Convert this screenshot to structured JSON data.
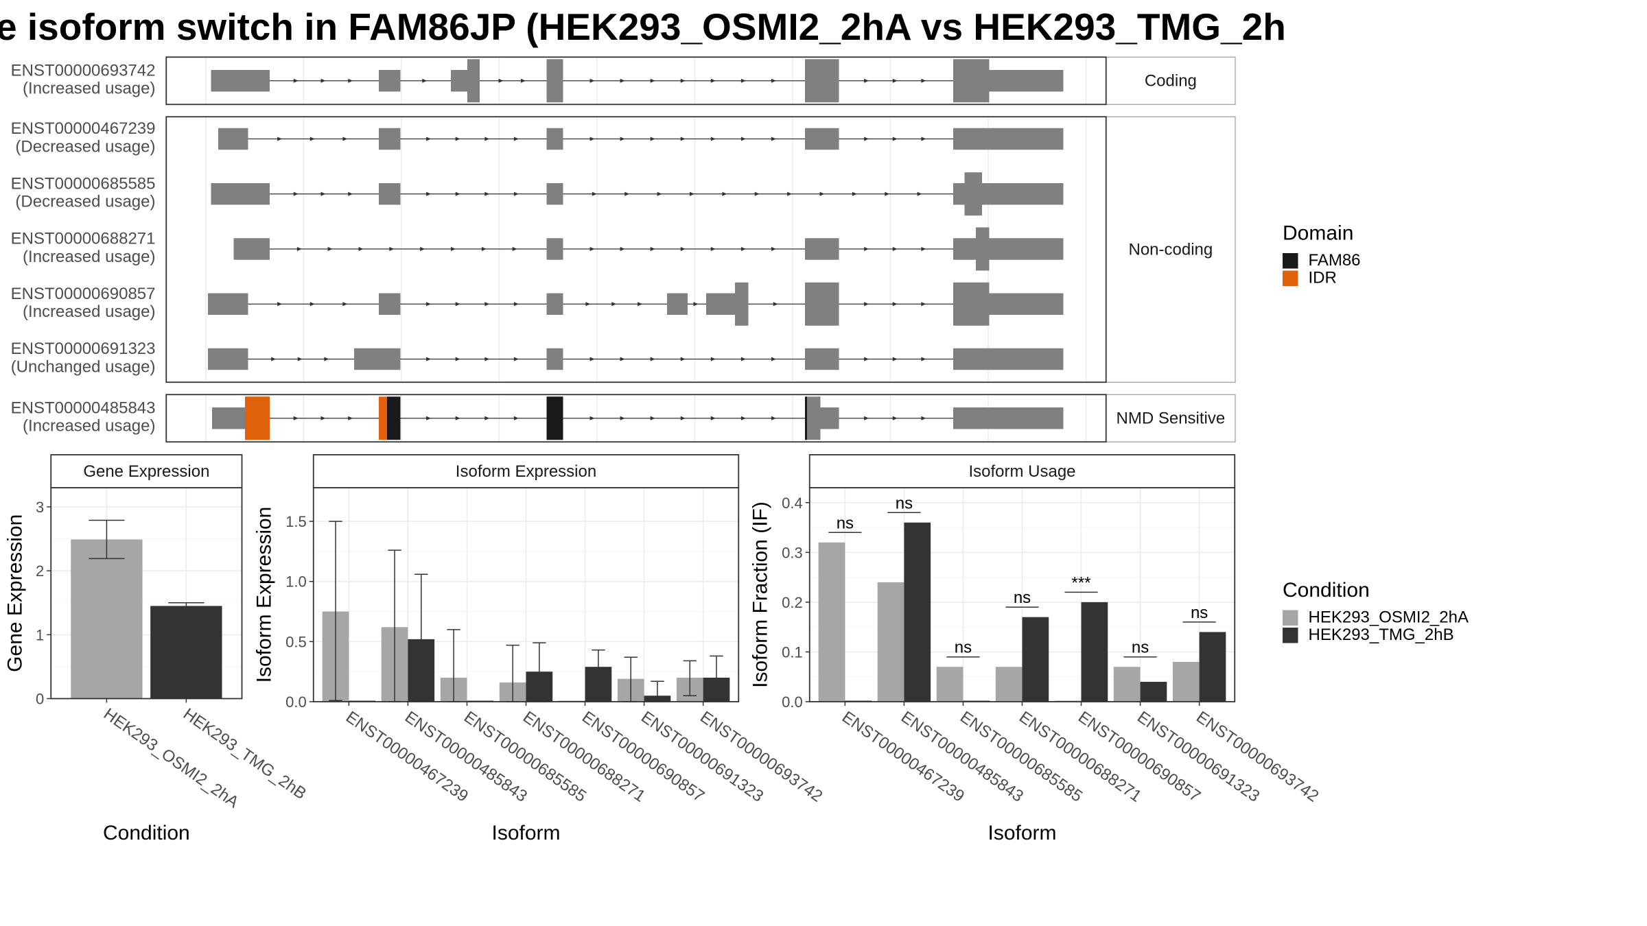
{
  "title": "e isoform switch in FAM86JP (HEK293_OSMI2_2hA vs HEK293_TMG_2h",
  "colors": {
    "exon": "#808080",
    "fam86": "#1a1a1a",
    "idr": "#e06109",
    "cond_a": "#a6a6a6",
    "cond_b": "#333333",
    "grid": "#ebebeb",
    "strip_border": "#999999"
  },
  "structure": {
    "groups": [
      {
        "label": "Coding",
        "rows": [
          0
        ]
      },
      {
        "label": "Non-coding",
        "rows": [
          1,
          2,
          3,
          4,
          5
        ]
      },
      {
        "label": "NMD Sensitive",
        "rows": [
          6
        ]
      }
    ],
    "transcripts": [
      {
        "id": "ENST00000693742",
        "usage": "(Increased usage)",
        "exons": [
          [
            205,
            262,
            "s"
          ],
          [
            368,
            389,
            "s"
          ],
          [
            438,
            454,
            "s"
          ],
          [
            454,
            466,
            "t"
          ],
          [
            531,
            547,
            "t"
          ],
          [
            782,
            815,
            "t"
          ],
          [
            926,
            961,
            "t"
          ],
          [
            961,
            1033,
            "m"
          ]
        ],
        "domains": []
      },
      {
        "id": "ENST00000467239",
        "usage": "(Decreased usage)",
        "exons": [
          [
            212,
            241,
            "s"
          ],
          [
            368,
            389,
            "s"
          ],
          [
            531,
            547,
            "s"
          ],
          [
            782,
            815,
            "s"
          ],
          [
            926,
            1033,
            "m"
          ]
        ],
        "domains": []
      },
      {
        "id": "ENST00000685585",
        "usage": "(Decreased usage)",
        "exons": [
          [
            205,
            262,
            "s"
          ],
          [
            368,
            389,
            "s"
          ],
          [
            531,
            547,
            "s"
          ],
          [
            926,
            937,
            "s"
          ],
          [
            937,
            954,
            "t"
          ],
          [
            954,
            1033,
            "s"
          ]
        ],
        "domains": []
      },
      {
        "id": "ENST00000688271",
        "usage": "(Increased usage)",
        "exons": [
          [
            227,
            262,
            "s"
          ],
          [
            531,
            547,
            "s"
          ],
          [
            782,
            815,
            "s"
          ],
          [
            926,
            948,
            "s"
          ],
          [
            948,
            961,
            "t"
          ],
          [
            961,
            1033,
            "s"
          ]
        ],
        "domains": []
      },
      {
        "id": "ENST00000690857",
        "usage": "(Increased usage)",
        "exons": [
          [
            202,
            241,
            "s"
          ],
          [
            368,
            389,
            "s"
          ],
          [
            531,
            547,
            "s"
          ],
          [
            648,
            668,
            "s"
          ],
          [
            686,
            714,
            "s"
          ],
          [
            714,
            727,
            "t"
          ],
          [
            782,
            815,
            "t"
          ],
          [
            926,
            961,
            "t"
          ],
          [
            961,
            1033,
            "s"
          ]
        ],
        "domains": []
      },
      {
        "id": "ENST00000691323",
        "usage": "(Unchanged usage)",
        "exons": [
          [
            202,
            241,
            "s"
          ],
          [
            344,
            389,
            "s"
          ],
          [
            531,
            547,
            "s"
          ],
          [
            782,
            815,
            "s"
          ],
          [
            926,
            1033,
            "s"
          ]
        ],
        "domains": []
      },
      {
        "id": "ENST00000485843",
        "usage": "(Increased usage)",
        "exons": [
          [
            206,
            238,
            "s"
          ],
          [
            238,
            262,
            "t"
          ],
          [
            368,
            389,
            "s"
          ],
          [
            531,
            547,
            "t"
          ],
          [
            782,
            797,
            "t"
          ],
          [
            797,
            815,
            "s"
          ],
          [
            926,
            1033,
            "s"
          ]
        ],
        "domains": [
          [
            238,
            262,
            "idr"
          ],
          [
            368,
            376,
            "idr"
          ],
          [
            376,
            389,
            "fam86"
          ],
          [
            531,
            547,
            "fam86"
          ],
          [
            782,
            784,
            "fam86"
          ]
        ]
      }
    ]
  },
  "legends": {
    "domain_title": "Domain",
    "domain_items": [
      {
        "label": "FAM86",
        "color": "#1a1a1a"
      },
      {
        "label": "IDR",
        "color": "#e06109"
      }
    ],
    "condition_title": "Condition",
    "condition_items": [
      {
        "label": "HEK293_OSMI2_2hA",
        "color": "#a6a6a6"
      },
      {
        "label": "HEK293_TMG_2hB",
        "color": "#333333"
      }
    ]
  },
  "chart_data": [
    {
      "type": "bar",
      "title": "Gene Expression",
      "xlabel": "Condition",
      "ylabel": "Gene Expression",
      "ylim": [
        0,
        3.3
      ],
      "yticks": [
        0,
        1,
        2,
        3
      ],
      "categories": [
        "HEK293_OSMI2_2hA",
        "HEK293_TMG_2hB"
      ],
      "values": [
        2.49,
        1.45
      ],
      "errors": [
        [
          2.19,
          2.79
        ],
        [
          1.4,
          1.5
        ]
      ]
    },
    {
      "type": "bar",
      "title": "Isoform Expression",
      "xlabel": "Isoform",
      "ylabel": "Isoform Expression",
      "ylim": [
        0,
        1.78
      ],
      "yticks": [
        0.0,
        0.5,
        1.0,
        1.5
      ],
      "categories": [
        "ENST00000467239",
        "ENST00000485843",
        "ENST00000685585",
        "ENST00000688271",
        "ENST00000690857",
        "ENST00000691323",
        "ENST00000693742"
      ],
      "series": [
        {
          "name": "HEK293_OSMI2_2hA",
          "values": [
            0.75,
            0.62,
            0.2,
            0.16,
            0.0,
            0.19,
            0.2
          ],
          "errors": [
            [
              0.01,
              1.5
            ],
            [
              0.0,
              1.26
            ],
            [
              0.0,
              0.6
            ],
            [
              0.0,
              0.47
            ],
            null,
            [
              0.0,
              0.37
            ],
            [
              0.05,
              0.34
            ]
          ]
        },
        {
          "name": "HEK293_TMG_2hB",
          "values": [
            0.0,
            0.52,
            0.0,
            0.25,
            0.29,
            0.05,
            0.2
          ],
          "errors": [
            null,
            [
              0.0,
              1.06
            ],
            null,
            [
              0.0,
              0.49
            ],
            [
              0.15,
              0.43
            ],
            [
              0.0,
              0.17
            ],
            [
              0.02,
              0.38
            ]
          ]
        }
      ]
    },
    {
      "type": "bar",
      "title": "Isoform Usage",
      "xlabel": "Isoform",
      "ylabel": "Isoform Fraction (IF)",
      "ylim": [
        0,
        0.43
      ],
      "yticks": [
        0.0,
        0.1,
        0.2,
        0.3,
        0.4
      ],
      "categories": [
        "ENST00000467239",
        "ENST00000485843",
        "ENST00000685585",
        "ENST00000688271",
        "ENST00000690857",
        "ENST00000691323",
        "ENST00000693742"
      ],
      "series": [
        {
          "name": "HEK293_OSMI2_2hA",
          "values": [
            0.32,
            0.24,
            0.07,
            0.07,
            0.0,
            0.07,
            0.08
          ]
        },
        {
          "name": "HEK293_TMG_2hB",
          "values": [
            0.0,
            0.36,
            0.0,
            0.17,
            0.2,
            0.04,
            0.14
          ]
        }
      ],
      "significance": [
        "ns",
        "ns",
        "ns",
        "ns",
        "***",
        "ns",
        "ns"
      ],
      "significance_y": [
        0.34,
        0.38,
        0.09,
        0.19,
        0.22,
        0.09,
        0.16
      ]
    }
  ]
}
